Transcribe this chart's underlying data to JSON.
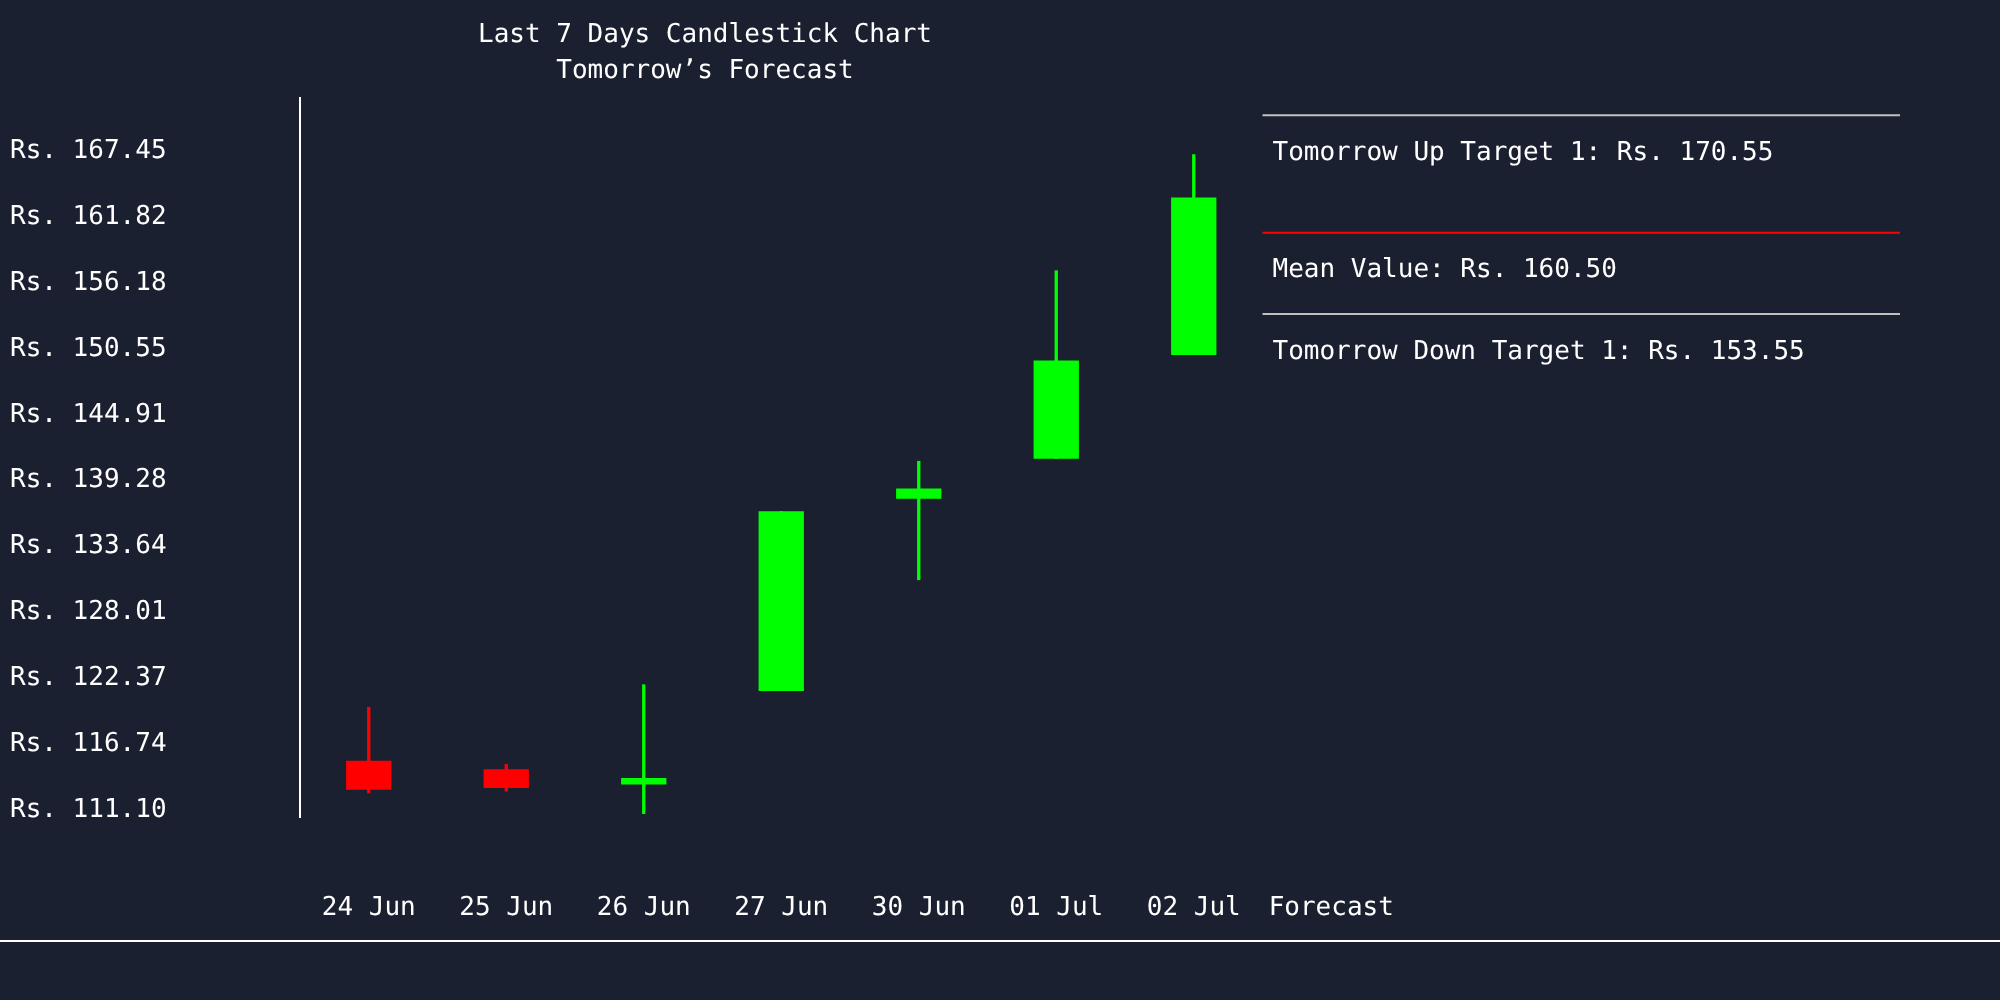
{
  "chart_data": {
    "type": "candlestick",
    "title": "Last 7 Days Candlestick Chart",
    "subtitle": "Tomorrow’s Forecast",
    "categories": [
      "24 Jun",
      "25 Jun",
      "26 Jun",
      "27 Jun",
      "30 Jun",
      "01 Jul",
      "02 Jul",
      "Forecast"
    ],
    "ohlc": [
      [
        115.25,
        119.85,
        112.58,
        112.88
      ],
      [
        114.51,
        114.96,
        112.73,
        113.03
      ],
      [
        113.32,
        121.78,
        110.8,
        113.77
      ],
      [
        121.33,
        136.61,
        121.33,
        136.61
      ],
      [
        137.79,
        140.91,
        130.82,
        138.54
      ],
      [
        141.2,
        157.22,
        141.2,
        149.51
      ],
      [
        150.1,
        167.16,
        150.1,
        163.45
      ],
      null
    ],
    "colors": [
      "#ff0000",
      "#ff0000",
      "#00ff00",
      "#00ff00",
      "#00ff00",
      "#00ff00",
      "#00ff00",
      null
    ],
    "ylim": [
      110.5,
      172
    ],
    "yticks": [
      {
        "value": 111.1,
        "label": "Rs. 111.10"
      },
      {
        "value": 116.74,
        "label": "Rs. 116.74"
      },
      {
        "value": 122.37,
        "label": "Rs. 122.37"
      },
      {
        "value": 128.01,
        "label": "Rs. 128.01"
      },
      {
        "value": 133.64,
        "label": "Rs. 133.64"
      },
      {
        "value": 139.28,
        "label": "Rs. 139.28"
      },
      {
        "value": 144.91,
        "label": "Rs. 144.91"
      },
      {
        "value": 150.55,
        "label": "Rs. 150.55"
      },
      {
        "value": 156.18,
        "label": "Rs. 156.18"
      },
      {
        "value": 161.82,
        "label": "Rs. 161.82"
      },
      {
        "value": 167.45,
        "label": "Rs. 167.45"
      }
    ],
    "grid": false,
    "legend": false,
    "ref_lines": [
      {
        "axis": "y",
        "value": 170.55,
        "label": "Tomorrow Up Target 1: Rs. 170.55",
        "color": "#c0c0c0"
      },
      {
        "axis": "y",
        "value": 160.5,
        "label": "Mean Value: Rs. 160.50",
        "color": "#ff0000"
      },
      {
        "axis": "y",
        "value": 153.55,
        "label": "Tomorrow Down Target 1: Rs. 153.55",
        "color": "#c0c0c0"
      }
    ]
  }
}
